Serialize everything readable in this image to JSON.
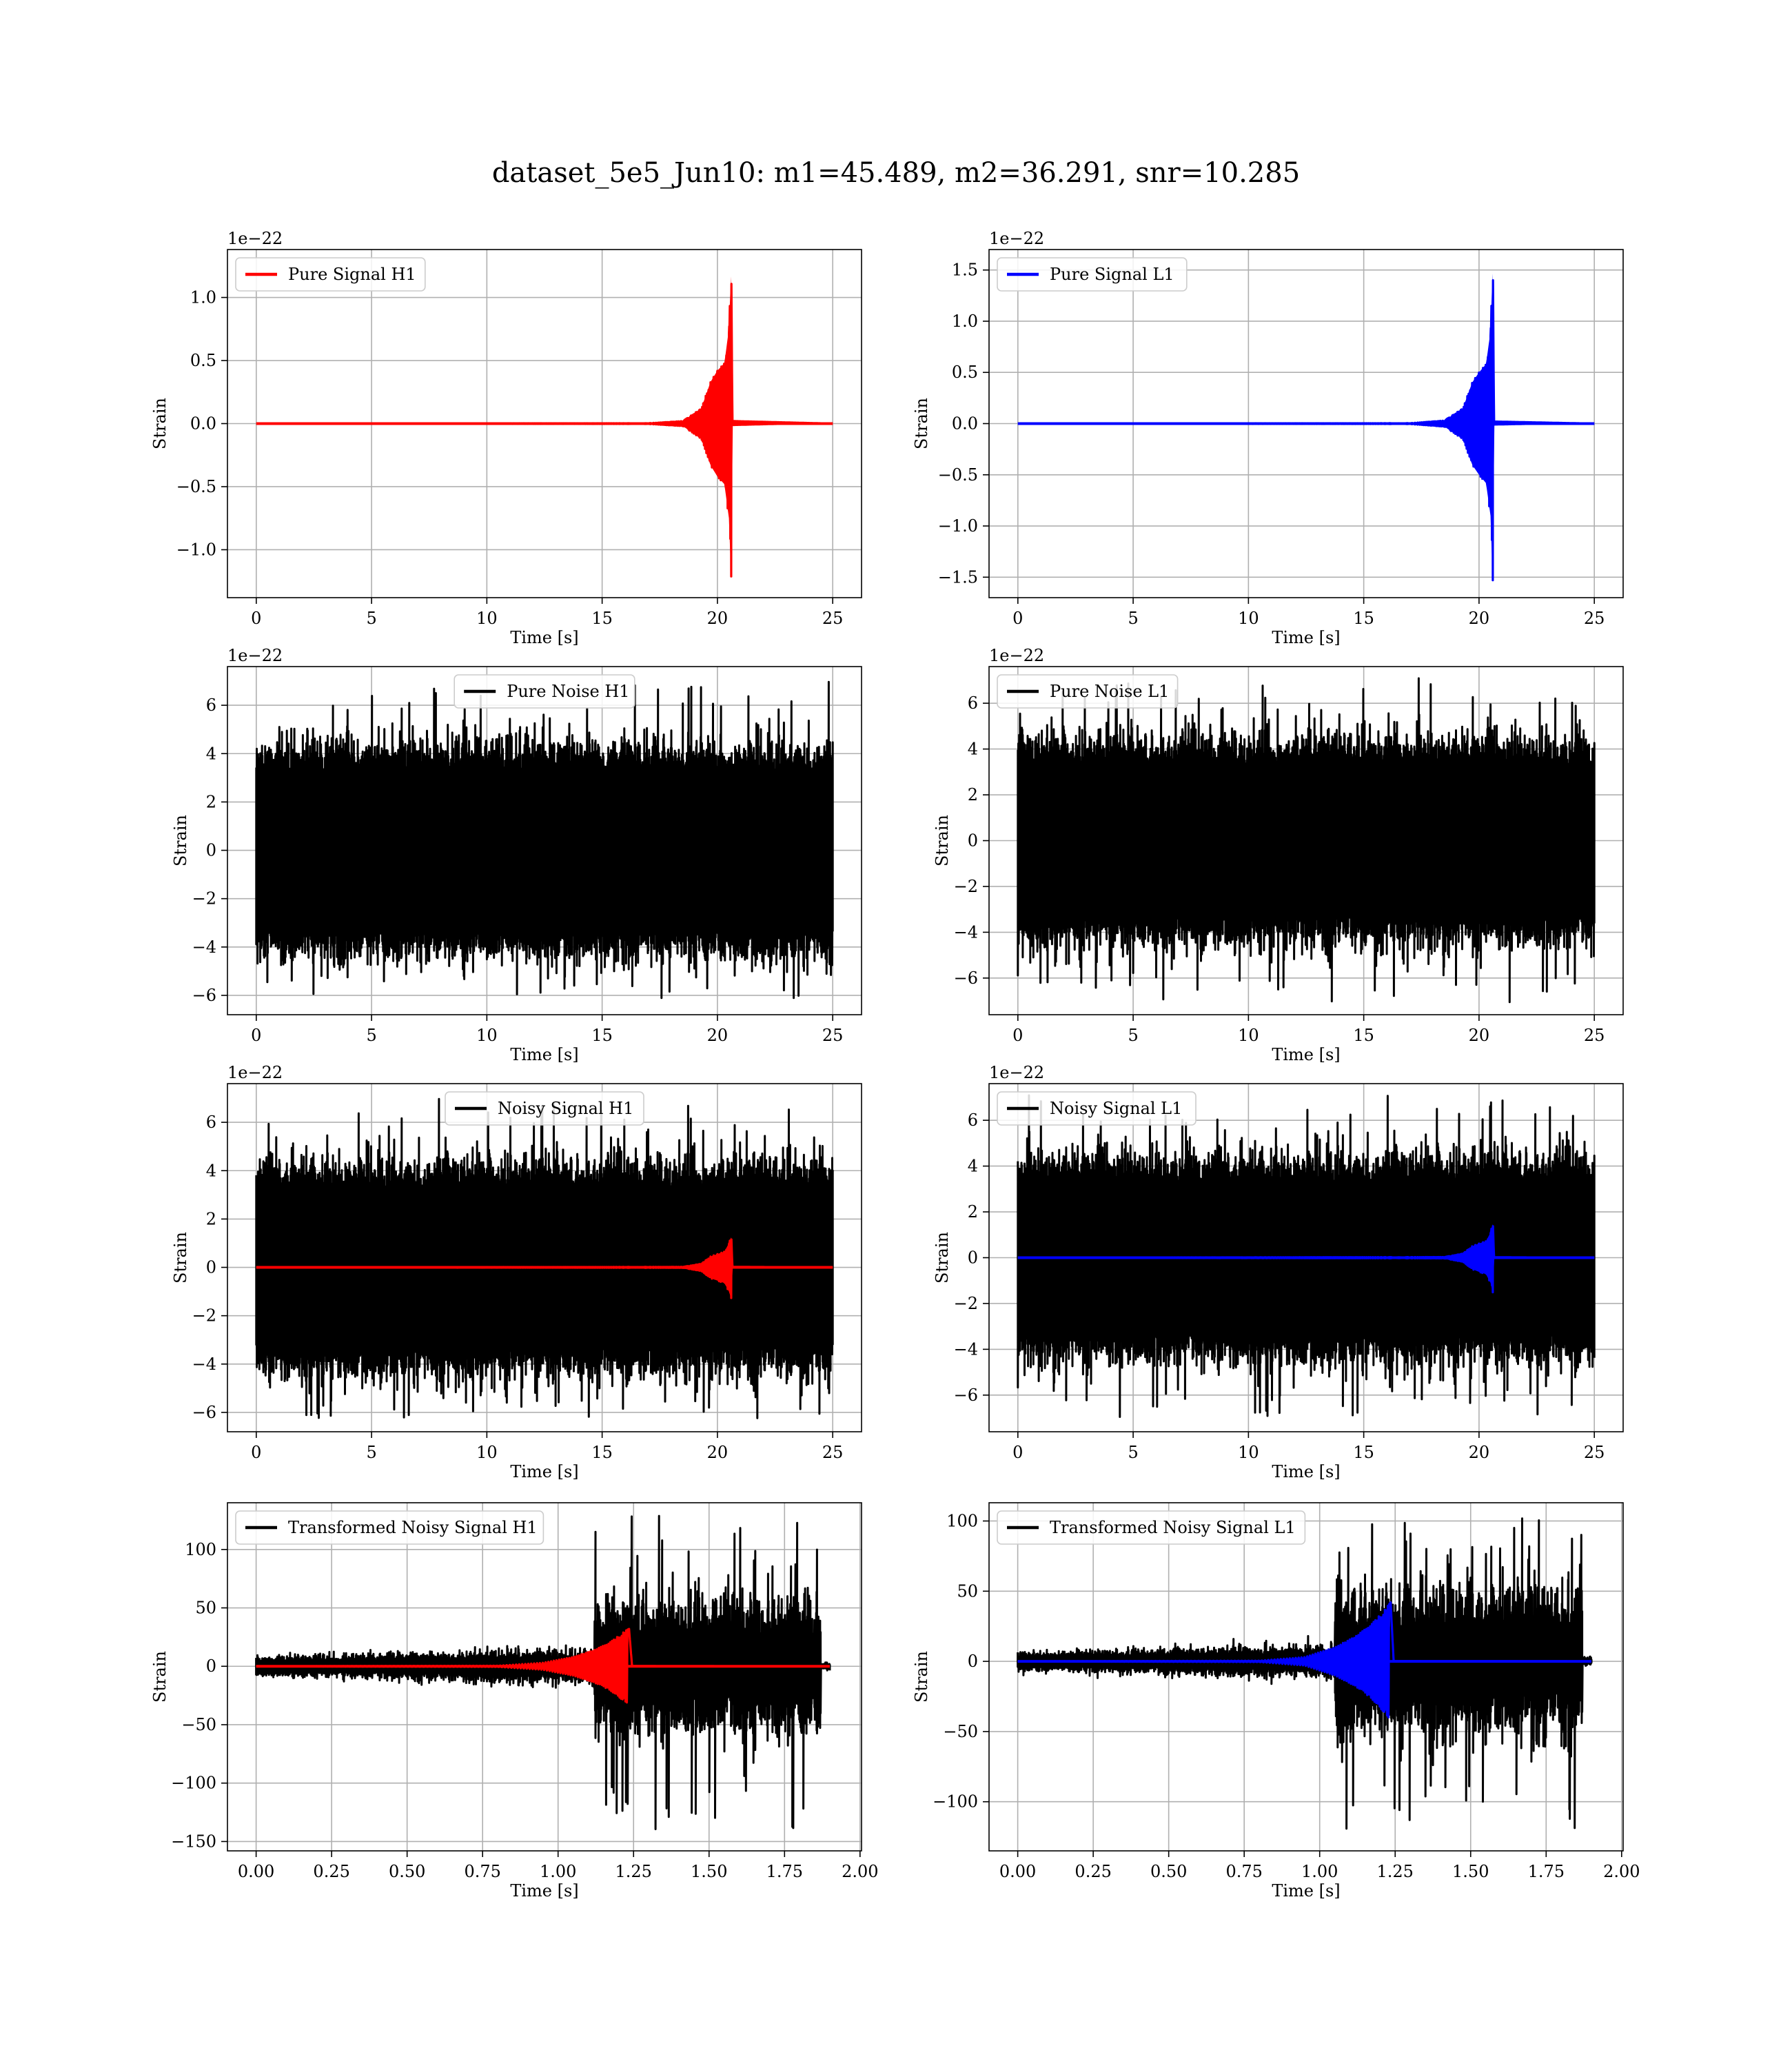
{
  "figure": {
    "title": "dataset_5e5_Jun10: m1=45.489, m2=36.291, snr=10.285"
  },
  "chart_data": [
    {
      "id": "pure-signal-h1",
      "type": "line",
      "kind": "chirp",
      "xlabel": "Time [s]",
      "ylabel": "Strain",
      "offset_text": "1e−22",
      "xlim": [
        -1.25,
        26.25
      ],
      "ylim": [
        -1.38,
        1.38
      ],
      "xticks": [
        0,
        5,
        10,
        15,
        20,
        25
      ],
      "xtick_labels": [
        "0",
        "5",
        "10",
        "15",
        "20",
        "25"
      ],
      "yticks": [
        -1.0,
        -0.5,
        0.0,
        0.5,
        1.0
      ],
      "ytick_labels": [
        "−1.0",
        "−0.5",
        "0.0",
        "0.5",
        "1.0"
      ],
      "grid": true,
      "legend_position": "upper left",
      "series": [
        {
          "name": "Pure Signal H1",
          "color": "#ff0000",
          "duration": 25,
          "merger": 20.6,
          "envelope": [
            [
              0,
              0.0
            ],
            [
              17,
              0.003
            ],
            [
              18.5,
              0.02
            ],
            [
              19.3,
              0.12
            ],
            [
              19.7,
              0.33
            ],
            [
              20.0,
              0.42
            ],
            [
              20.3,
              0.48
            ],
            [
              20.5,
              0.75
            ],
            [
              20.6,
              1.25
            ],
            [
              20.65,
              0.02
            ],
            [
              25,
              0.0
            ]
          ]
        }
      ]
    },
    {
      "id": "pure-signal-l1",
      "type": "line",
      "kind": "chirp",
      "xlabel": "Time [s]",
      "ylabel": "Strain",
      "offset_text": "1e−22",
      "xlim": [
        -1.25,
        26.25
      ],
      "ylim": [
        -1.7,
        1.7
      ],
      "xticks": [
        0,
        5,
        10,
        15,
        20,
        25
      ],
      "xtick_labels": [
        "0",
        "5",
        "10",
        "15",
        "20",
        "25"
      ],
      "yticks": [
        -1.5,
        -1.0,
        -0.5,
        0.0,
        0.5,
        1.0,
        1.5
      ],
      "ytick_labels": [
        "−1.5",
        "−1.0",
        "−0.5",
        "0.0",
        "0.5",
        "1.0",
        "1.5"
      ],
      "grid": true,
      "legend_position": "upper left",
      "series": [
        {
          "name": "Pure Signal L1",
          "color": "#0000ff",
          "duration": 25,
          "merger": 20.6,
          "envelope": [
            [
              0,
              0.0
            ],
            [
              17,
              0.004
            ],
            [
              18.5,
              0.03
            ],
            [
              19.3,
              0.15
            ],
            [
              19.7,
              0.4
            ],
            [
              20.0,
              0.5
            ],
            [
              20.3,
              0.58
            ],
            [
              20.5,
              0.9
            ],
            [
              20.6,
              1.58
            ],
            [
              20.65,
              0.02
            ],
            [
              25,
              0.0
            ]
          ]
        }
      ]
    },
    {
      "id": "pure-noise-h1",
      "type": "line",
      "kind": "noise",
      "xlabel": "Time [s]",
      "ylabel": "Strain",
      "offset_text": "1e−22",
      "xlim": [
        -1.25,
        26.25
      ],
      "ylim": [
        -6.8,
        7.6
      ],
      "xticks": [
        0,
        5,
        10,
        15,
        20,
        25
      ],
      "xtick_labels": [
        "0",
        "5",
        "10",
        "15",
        "20",
        "25"
      ],
      "yticks": [
        -6,
        -4,
        -2,
        0,
        2,
        4,
        6
      ],
      "ytick_labels": [
        "−6",
        "−4",
        "−2",
        "0",
        "2",
        "4",
        "6"
      ],
      "grid": true,
      "legend_position": "upper center",
      "series": [
        {
          "name": "Pure Noise H1",
          "color": "#000000",
          "duration": 25,
          "base": 3.2,
          "spread": 1.2,
          "max": 7.0,
          "min": -6.2
        }
      ]
    },
    {
      "id": "pure-noise-l1",
      "type": "line",
      "kind": "noise",
      "xlabel": "Time [s]",
      "ylabel": "Strain",
      "offset_text": "1e−22",
      "xlim": [
        -1.25,
        26.25
      ],
      "ylim": [
        -7.6,
        7.6
      ],
      "xticks": [
        0,
        5,
        10,
        15,
        20,
        25
      ],
      "xtick_labels": [
        "0",
        "5",
        "10",
        "15",
        "20",
        "25"
      ],
      "yticks": [
        -6,
        -4,
        -2,
        0,
        2,
        4,
        6
      ],
      "ytick_labels": [
        "−6",
        "−4",
        "−2",
        "0",
        "2",
        "4",
        "6"
      ],
      "grid": true,
      "legend_position": "upper left",
      "series": [
        {
          "name": "Pure Noise L1",
          "color": "#000000",
          "duration": 25,
          "base": 3.2,
          "spread": 1.3,
          "max": 7.1,
          "min": -7.1
        }
      ]
    },
    {
      "id": "noisy-signal-h1",
      "type": "line",
      "kind": "noise+chirp",
      "xlabel": "Time [s]",
      "ylabel": "Strain",
      "offset_text": "1e−22",
      "xlim": [
        -1.25,
        26.25
      ],
      "ylim": [
        -6.8,
        7.6
      ],
      "xticks": [
        0,
        5,
        10,
        15,
        20,
        25
      ],
      "xtick_labels": [
        "0",
        "5",
        "10",
        "15",
        "20",
        "25"
      ],
      "yticks": [
        -6,
        -4,
        -2,
        0,
        2,
        4,
        6
      ],
      "ytick_labels": [
        "−6",
        "−4",
        "−2",
        "0",
        "2",
        "4",
        "6"
      ],
      "grid": true,
      "legend_position": "upper center",
      "series": [
        {
          "name": "Noisy Signal H1",
          "color": "#000000",
          "duration": 25,
          "base": 3.2,
          "spread": 1.2,
          "max": 7.0,
          "min": -6.3
        },
        {
          "name": "",
          "color": "#ff0000",
          "duration": 25,
          "merger": 20.6,
          "envelope": [
            [
              0,
              0.0
            ],
            [
              18.5,
              0.02
            ],
            [
              19.3,
              0.15
            ],
            [
              19.7,
              0.45
            ],
            [
              20.0,
              0.55
            ],
            [
              20.3,
              0.65
            ],
            [
              20.5,
              1.0
            ],
            [
              20.6,
              1.3
            ],
            [
              20.65,
              0.02
            ],
            [
              25,
              0.0
            ]
          ]
        }
      ]
    },
    {
      "id": "noisy-signal-l1",
      "type": "line",
      "kind": "noise+chirp",
      "xlabel": "Time [s]",
      "ylabel": "Strain",
      "offset_text": "1e−22",
      "xlim": [
        -1.25,
        26.25
      ],
      "ylim": [
        -7.6,
        7.6
      ],
      "xticks": [
        0,
        5,
        10,
        15,
        20,
        25
      ],
      "xtick_labels": [
        "0",
        "5",
        "10",
        "15",
        "20",
        "25"
      ],
      "yticks": [
        -6,
        -4,
        -2,
        0,
        2,
        4,
        6
      ],
      "ytick_labels": [
        "−6",
        "−4",
        "−2",
        "0",
        "2",
        "4",
        "6"
      ],
      "grid": true,
      "legend_position": "upper left",
      "series": [
        {
          "name": "Noisy Signal L1",
          "color": "#000000",
          "duration": 25,
          "base": 3.2,
          "spread": 1.3,
          "max": 7.1,
          "min": -7.0
        },
        {
          "name": "",
          "color": "#0000ff",
          "duration": 25,
          "merger": 20.6,
          "envelope": [
            [
              0,
              0.0
            ],
            [
              18.5,
              0.03
            ],
            [
              19.3,
              0.18
            ],
            [
              19.7,
              0.5
            ],
            [
              20.0,
              0.62
            ],
            [
              20.3,
              0.72
            ],
            [
              20.5,
              1.1
            ],
            [
              20.6,
              1.55
            ],
            [
              20.65,
              0.02
            ],
            [
              25,
              0.0
            ]
          ]
        }
      ]
    },
    {
      "id": "transformed-noisy-signal-h1",
      "type": "line",
      "kind": "transformed",
      "xlabel": "Time [s]",
      "ylabel": "Strain",
      "offset_text": "",
      "xlim": [
        -0.095,
        2.005
      ],
      "ylim": [
        -158,
        140
      ],
      "xticks": [
        0.0,
        0.25,
        0.5,
        0.75,
        1.0,
        1.25,
        1.5,
        1.75,
        2.0
      ],
      "xtick_labels": [
        "0.00",
        "0.25",
        "0.50",
        "0.75",
        "1.00",
        "1.25",
        "1.50",
        "1.75",
        "2.00"
      ],
      "yticks": [
        -150,
        -100,
        -50,
        0,
        50,
        100
      ],
      "ytick_labels": [
        "−150",
        "−100",
        "−50",
        "0",
        "50",
        "100"
      ],
      "grid": true,
      "legend_position": "upper left",
      "series": [
        {
          "name": "Transformed Noisy Signal H1",
          "color": "#000000",
          "duration": 1.9,
          "cutoff": 1.87,
          "jump": 1.12,
          "pre_amp": 10,
          "post_amp": 55,
          "max": 130,
          "min": -143
        },
        {
          "name": "",
          "color": "#ff0000",
          "duration": 1.9,
          "merger": 1.23,
          "envelope": [
            [
              0,
              0.0
            ],
            [
              0.8,
              0.5
            ],
            [
              0.95,
              3
            ],
            [
              1.05,
              8
            ],
            [
              1.12,
              14
            ],
            [
              1.17,
              20
            ],
            [
              1.22,
              30
            ],
            [
              1.235,
              32
            ],
            [
              1.245,
              0.2
            ],
            [
              1.9,
              0.0
            ]
          ]
        }
      ]
    },
    {
      "id": "transformed-noisy-signal-l1",
      "type": "line",
      "kind": "transformed",
      "xlabel": "Time [s]",
      "ylabel": "Strain",
      "offset_text": "",
      "xlim": [
        -0.095,
        2.005
      ],
      "ylim": [
        -135,
        113
      ],
      "xticks": [
        0.0,
        0.25,
        0.5,
        0.75,
        1.0,
        1.25,
        1.5,
        1.75,
        2.0
      ],
      "xtick_labels": [
        "0.00",
        "0.25",
        "0.50",
        "0.75",
        "1.00",
        "1.25",
        "1.50",
        "1.75",
        "2.00"
      ],
      "yticks": [
        -100,
        -50,
        0,
        50,
        100
      ],
      "ytick_labels": [
        "−100",
        "−50",
        "0",
        "50",
        "100"
      ],
      "grid": true,
      "legend_position": "upper left",
      "series": [
        {
          "name": "Transformed Noisy Signal L1",
          "color": "#000000",
          "duration": 1.9,
          "cutoff": 1.87,
          "jump": 1.05,
          "pre_amp": 8,
          "post_amp": 50,
          "max": 102,
          "min": -125
        },
        {
          "name": "",
          "color": "#0000ff",
          "duration": 1.9,
          "merger": 1.23,
          "envelope": [
            [
              0,
              0.0
            ],
            [
              0.8,
              0.5
            ],
            [
              0.95,
              3
            ],
            [
              1.05,
              10
            ],
            [
              1.12,
              18
            ],
            [
              1.17,
              26
            ],
            [
              1.22,
              38
            ],
            [
              1.235,
              42
            ],
            [
              1.245,
              0.2
            ],
            [
              1.9,
              0.0
            ]
          ]
        }
      ]
    }
  ]
}
